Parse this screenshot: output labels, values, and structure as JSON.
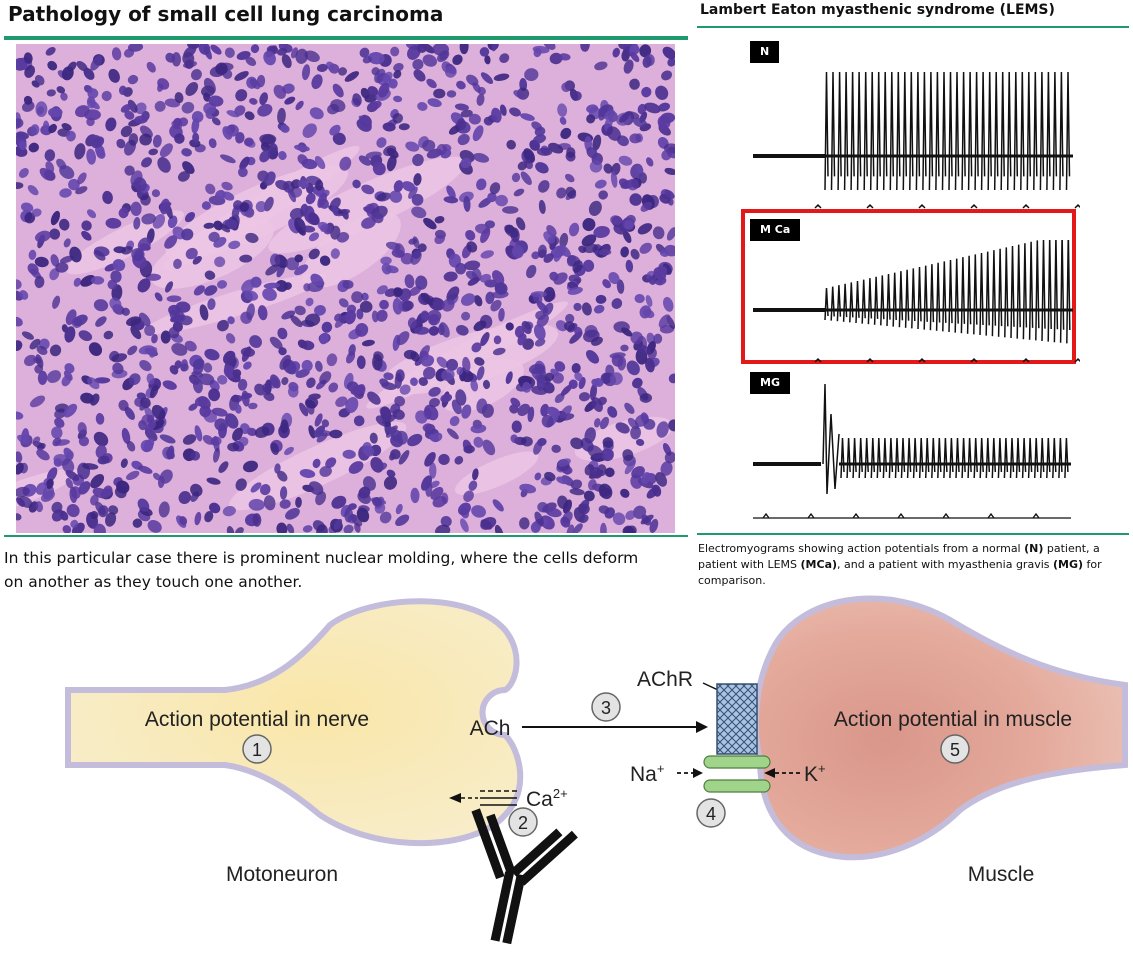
{
  "left_panel": {
    "title": "Pathology of small cell lung carcinoma",
    "caption": "In this particular case there is prominent nuclear molding, where the cells deform on another as they touch one another."
  },
  "right_panel": {
    "title": "Lambert Eaton myasthenic syndrome (LEMS)",
    "traces": [
      {
        "label": "N"
      },
      {
        "label": "M Ca"
      },
      {
        "label": "MG"
      }
    ],
    "caption_parts": [
      "Electromyograms showing action potentials from a normal ",
      "(N)",
      " patient, a patient with LEMS ",
      "(MCa)",
      ", and a patient with myasthenia gravis ",
      "(MG)",
      " for comparison."
    ]
  },
  "diagram": {
    "nerve_label": "Action potential in nerve",
    "muscle_label": "Action potential in muscle",
    "ach_label": "ACh",
    "achr_label": "AChR",
    "ca_label": "Ca",
    "ca_sup": "2+",
    "na_label": "Na",
    "k_label": "K",
    "ion_sup": "+",
    "motoneuron_label": "Motoneuron",
    "muscle_caption": "Muscle",
    "steps": [
      "1",
      "2",
      "3",
      "4",
      "5"
    ]
  },
  "colors": {
    "accent_rule": "#1f9a6e",
    "highlight_box": "#e31919",
    "nerve_fill": "#f7e7b3",
    "membrane": "#c9c0dd",
    "muscle_fill": "#e3a898",
    "receptor": "#9db7dc",
    "channel": "#9fd48a"
  }
}
